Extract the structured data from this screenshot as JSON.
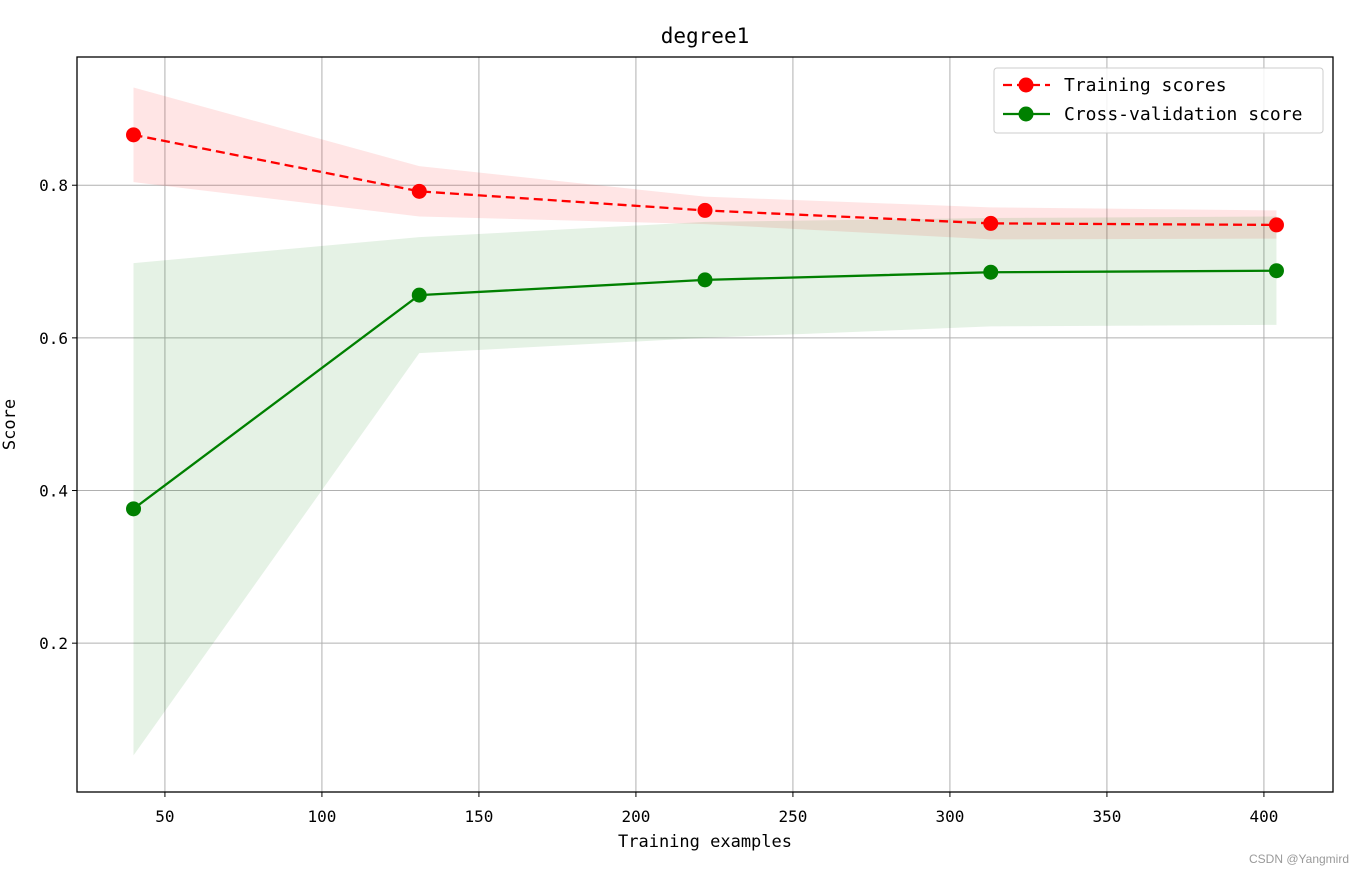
{
  "chart_data": {
    "type": "line",
    "title": "degree1",
    "xlabel": "Training examples",
    "ylabel": "Score",
    "xlim": [
      22,
      422
    ],
    "ylim": [
      0.005,
      0.968
    ],
    "x_ticks": [
      50,
      100,
      150,
      200,
      250,
      300,
      350,
      400
    ],
    "y_ticks": [
      0.2,
      0.4,
      0.6,
      0.8
    ],
    "x_tick_labels": [
      "50",
      "100",
      "150",
      "200",
      "250",
      "300",
      "350",
      "400"
    ],
    "y_tick_labels": [
      "0.2",
      "0.4",
      "0.6",
      "0.8"
    ],
    "grid": true,
    "legend_position": "top-right",
    "x": [
      40,
      131,
      222,
      313,
      404
    ],
    "series": [
      {
        "name": "Training scores",
        "values": [
          0.866,
          0.792,
          0.767,
          0.75,
          0.748
        ],
        "band_lower": [
          0.804,
          0.759,
          0.749,
          0.729,
          0.73
        ],
        "band_upper": [
          0.928,
          0.825,
          0.785,
          0.771,
          0.767
        ],
        "color": "#ff0000",
        "band_color": "#ff0000",
        "line_style": "dashed",
        "marker": "circle"
      },
      {
        "name": "Cross-validation score",
        "values": [
          0.376,
          0.656,
          0.676,
          0.686,
          0.688
        ],
        "band_lower": [
          0.053,
          0.58,
          0.6,
          0.615,
          0.617
        ],
        "band_upper": [
          0.698,
          0.732,
          0.752,
          0.757,
          0.759
        ],
        "color": "#008000",
        "band_color": "#008000",
        "line_style": "solid",
        "marker": "circle"
      }
    ]
  },
  "watermark": "CSDN @Yangmird"
}
